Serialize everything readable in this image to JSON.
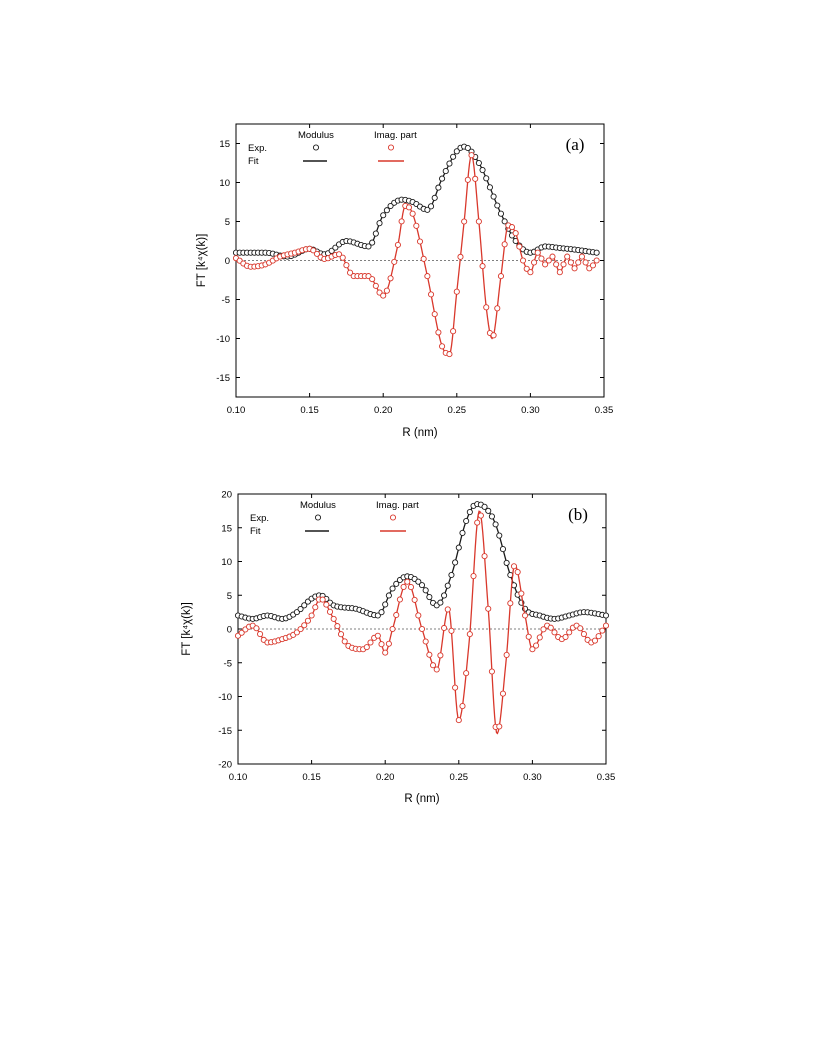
{
  "colors": {
    "modulus": "#1a1a1a",
    "imag": "#d9382c",
    "zero_line": "#555555"
  },
  "chart_data": [
    {
      "type": "line",
      "panel_label": "(a)",
      "xlabel": "R (nm)",
      "ylabel": "FT [k⁴χ(k)]",
      "xlim": [
        0.1,
        0.35
      ],
      "ylim": [
        -17.5,
        17.5
      ],
      "x_ticks": [
        "0.10",
        "0.15",
        "0.20",
        "0.25",
        "0.30",
        "0.35"
      ],
      "y_ticks": [
        "15",
        "10",
        "5",
        "0",
        "-5",
        "-10",
        "-15"
      ],
      "legend": {
        "col1": "Modulus",
        "col2": "Imag. part",
        "row1": "Exp.",
        "row2": "Fit"
      },
      "series": [
        {
          "name": "Modulus",
          "x": [
            0.1,
            0.12,
            0.135,
            0.15,
            0.16,
            0.175,
            0.19,
            0.2,
            0.213,
            0.22,
            0.23,
            0.24,
            0.25,
            0.255,
            0.265,
            0.28,
            0.29,
            0.3,
            0.31,
            0.32,
            0.33,
            0.345
          ],
          "y": [
            1.0,
            1.0,
            0.5,
            1.5,
            0.8,
            2.5,
            1.8,
            5.8,
            7.8,
            7.5,
            6.5,
            10.5,
            14.0,
            14.6,
            12.5,
            6.0,
            2.5,
            1.0,
            1.8,
            1.6,
            1.4,
            1.0
          ]
        },
        {
          "name": "Imag. part",
          "x": [
            0.1,
            0.11,
            0.12,
            0.13,
            0.14,
            0.15,
            0.16,
            0.17,
            0.18,
            0.19,
            0.2,
            0.21,
            0.215,
            0.22,
            0.23,
            0.24,
            0.245,
            0.25,
            0.255,
            0.26,
            0.265,
            0.27,
            0.274,
            0.28,
            0.285,
            0.29,
            0.295,
            0.3,
            0.305,
            0.31,
            0.315,
            0.32,
            0.325,
            0.33,
            0.335,
            0.34,
            0.345
          ],
          "y": [
            0.3,
            -0.8,
            -0.5,
            0.5,
            1.0,
            1.5,
            0.2,
            0.8,
            -2.0,
            -2.0,
            -4.5,
            2.0,
            7.0,
            6.0,
            -2.0,
            -11.0,
            -12.0,
            -4.0,
            5.0,
            13.5,
            5.0,
            -6.0,
            -10.0,
            -2.0,
            4.5,
            3.5,
            0.0,
            -1.5,
            1.0,
            -0.5,
            0.5,
            -1.5,
            0.5,
            -1.0,
            0.5,
            -1.0,
            0.0
          ]
        }
      ]
    },
    {
      "type": "line",
      "panel_label": "(b)",
      "xlabel": "R (nm)",
      "ylabel": "FT [k⁴χ(k)]",
      "xlim": [
        0.1,
        0.35
      ],
      "ylim": [
        -20,
        20
      ],
      "x_ticks": [
        "0.10",
        "0.15",
        "0.20",
        "0.25",
        "0.30",
        "0.35"
      ],
      "y_ticks": [
        "20",
        "15",
        "10",
        "5",
        "0",
        "-5",
        "-10",
        "-15",
        "-20"
      ],
      "legend": {
        "col1": "Modulus",
        "col2": "Imag. part",
        "row1": "Exp.",
        "row2": "Fit"
      },
      "series": [
        {
          "name": "Modulus",
          "x": [
            0.1,
            0.11,
            0.12,
            0.13,
            0.14,
            0.15,
            0.156,
            0.165,
            0.18,
            0.195,
            0.205,
            0.215,
            0.225,
            0.235,
            0.245,
            0.255,
            0.262,
            0.268,
            0.275,
            0.285,
            0.295,
            0.305,
            0.315,
            0.325,
            0.335,
            0.35
          ],
          "y": [
            2.0,
            1.5,
            2.0,
            1.5,
            2.5,
            4.5,
            5.0,
            3.5,
            3.0,
            2.0,
            6.0,
            7.8,
            6.5,
            3.5,
            8.0,
            16.0,
            18.5,
            18.0,
            15.5,
            8.0,
            3.0,
            2.0,
            1.5,
            2.0,
            2.5,
            2.0
          ]
        },
        {
          "name": "Imag. part",
          "x": [
            0.1,
            0.11,
            0.12,
            0.13,
            0.14,
            0.15,
            0.156,
            0.165,
            0.175,
            0.185,
            0.195,
            0.2,
            0.205,
            0.215,
            0.225,
            0.235,
            0.243,
            0.25,
            0.257,
            0.264,
            0.27,
            0.276,
            0.282,
            0.288,
            0.295,
            0.3,
            0.31,
            0.32,
            0.33,
            0.34,
            0.35
          ],
          "y": [
            -1.0,
            0.5,
            -2.0,
            -1.5,
            -0.5,
            2.0,
            4.5,
            1.5,
            -2.5,
            -3.0,
            -1.0,
            -3.5,
            0.0,
            7.0,
            0.0,
            -6.0,
            3.0,
            -13.5,
            -2.0,
            17.5,
            3.0,
            -15.5,
            -5.0,
            9.5,
            2.0,
            -3.0,
            0.5,
            -1.5,
            0.5,
            -2.0,
            0.5
          ]
        }
      ]
    }
  ]
}
